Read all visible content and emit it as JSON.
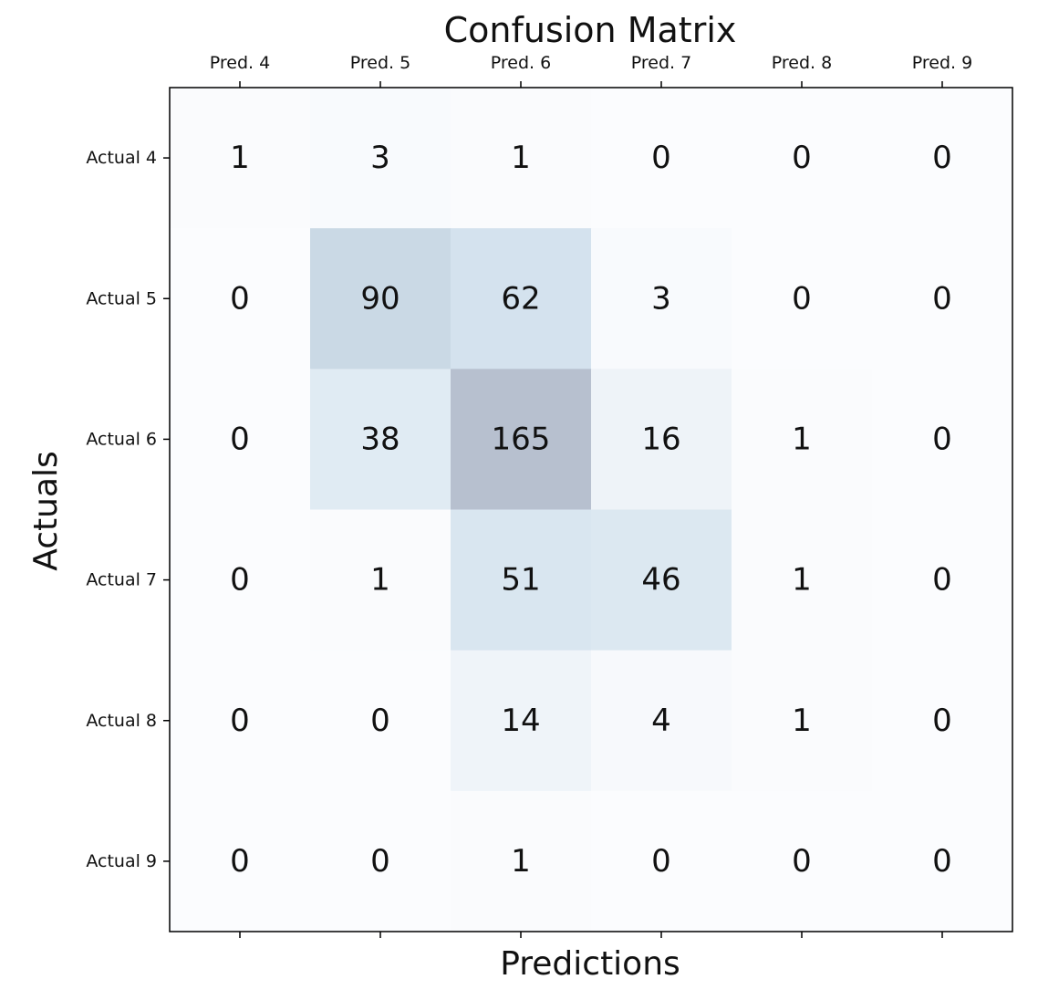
{
  "chart_data": {
    "type": "heatmap",
    "title": "Confusion Matrix",
    "xlabel": "Predictions",
    "ylabel": "Actuals",
    "x_categories": [
      "Pred. 4",
      "Pred. 5",
      "Pred. 6",
      "Pred. 7",
      "Pred. 8",
      "Pred. 9"
    ],
    "y_categories": [
      "Actual 4",
      "Actual 5",
      "Actual 6",
      "Actual 7",
      "Actual 8",
      "Actual 9"
    ],
    "values": [
      [
        1,
        3,
        1,
        0,
        0,
        0
      ],
      [
        0,
        90,
        62,
        3,
        0,
        0
      ],
      [
        0,
        38,
        165,
        16,
        1,
        0
      ],
      [
        0,
        1,
        51,
        46,
        1,
        0
      ],
      [
        0,
        0,
        14,
        4,
        1,
        0
      ],
      [
        0,
        0,
        1,
        0,
        0,
        0
      ]
    ],
    "x_tick_position": "top",
    "grid": false,
    "colormap": {
      "low": "#fbfcfe",
      "high": "#b7c0cf",
      "mid": "#d0e0ec"
    }
  }
}
